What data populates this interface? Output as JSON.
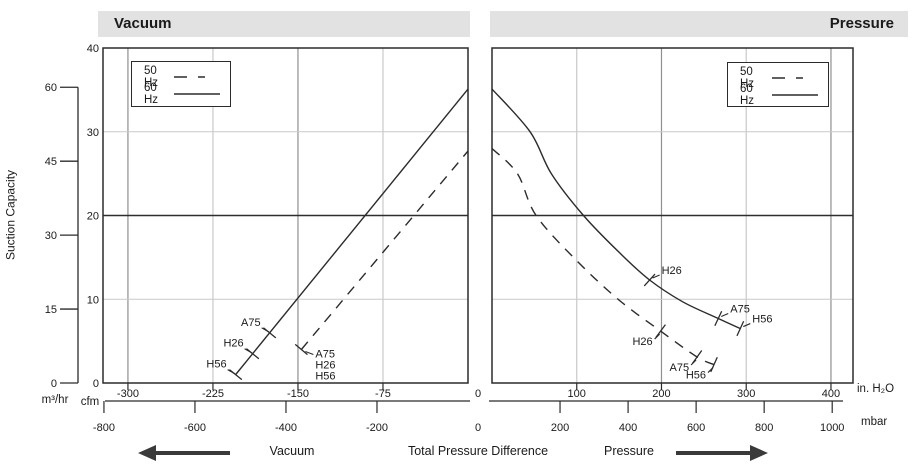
{
  "headers": {
    "vacuum": "Vacuum",
    "pressure": "Pressure"
  },
  "y_title": "Suction Capacity",
  "legend": {
    "items": [
      {
        "label": "50 Hz",
        "style": "dashed"
      },
      {
        "label": "60 Hz",
        "style": "solid"
      }
    ]
  },
  "units": {
    "m3hr": "m³/hr",
    "cfm": "cfm",
    "inh2o": "in. H₂O",
    "mbar": "mbar"
  },
  "captions": {
    "vacuum": "Vacuum",
    "center": "Total Pressure Difference",
    "pressure": "Pressure"
  },
  "shared_zero": {
    "inh2o": "0",
    "mbar": "0"
  },
  "colors": {
    "line": "#2b2b2b",
    "grid_light": "#c9c9c9",
    "grid_dark": "#8f8f8f",
    "grid_black": "#2e2e2e",
    "header_bg": "#e2e2e2",
    "arrow": "#3a3a3a",
    "text": "#1a1a1a"
  },
  "y_axis": {
    "cfm_ticks": [
      {
        "c": 0,
        "label": "0"
      },
      {
        "c": 10,
        "label": "10"
      },
      {
        "c": 20,
        "label": "20"
      },
      {
        "c": 30,
        "label": "30"
      },
      {
        "c": 40,
        "label": "40"
      }
    ],
    "m3hr_ticks": [
      {
        "m": 0,
        "label": "0"
      },
      {
        "m": 15,
        "label": "15"
      },
      {
        "m": 30,
        "label": "30"
      },
      {
        "m": 45,
        "label": "45"
      },
      {
        "m": 60,
        "label": "60"
      }
    ]
  },
  "h_grid": [
    {
      "c": 10,
      "tone": "light"
    },
    {
      "c": 20,
      "tone": "black"
    },
    {
      "c": 30,
      "tone": "light"
    }
  ],
  "chart_data": [
    {
      "id": "vacuum",
      "type": "line",
      "title": "Vacuum",
      "x_unit": "in. H₂O",
      "x2_unit": "mbar",
      "x_range": [
        -322,
        0
      ],
      "x_ticks": [
        {
          "v": -300,
          "label": "-300",
          "grid": "dark"
        },
        {
          "v": -225,
          "label": "-225",
          "grid": "light"
        },
        {
          "v": -150,
          "label": "-150",
          "grid": "dark"
        },
        {
          "v": -75,
          "label": "-75",
          "grid": "light"
        }
      ],
      "x2_ticks": [
        {
          "v": -800,
          "label": "-800"
        },
        {
          "v": -600,
          "label": "-600"
        },
        {
          "v": -400,
          "label": "-400"
        },
        {
          "v": -200,
          "label": "-200"
        }
      ],
      "series": [
        {
          "name": "50 Hz",
          "style": "dashed",
          "marker_layout": "right-stack",
          "points": [
            [
              -147,
              4.0
            ],
            [
              0,
              27.7
            ]
          ],
          "markers": [
            {
              "label": "A75",
              "v": -147
            },
            {
              "label": "H26",
              "v": -147
            },
            {
              "label": "H56",
              "v": -147
            }
          ]
        },
        {
          "name": "60 Hz",
          "style": "solid",
          "marker_layout": "upleft",
          "points": [
            [
              -205,
              1.0
            ],
            [
              0,
              35.1
            ]
          ],
          "markers": [
            {
              "label": "H56",
              "v": -205
            },
            {
              "label": "H26",
              "v": -190
            },
            {
              "label": "A75",
              "v": -175
            }
          ]
        }
      ]
    },
    {
      "id": "pressure",
      "type": "line",
      "title": "Pressure",
      "x_unit": "in. H₂O",
      "x2_unit": "mbar",
      "x_range": [
        0,
        426
      ],
      "x_ticks": [
        {
          "v": 100,
          "label": "100",
          "grid": "light"
        },
        {
          "v": 200,
          "label": "200",
          "grid": "dark"
        },
        {
          "v": 300,
          "label": "300",
          "grid": "light"
        },
        {
          "v": 400,
          "label": "400",
          "grid": "dark"
        }
      ],
      "x2_ticks": [
        {
          "v": 200,
          "label": "200"
        },
        {
          "v": 400,
          "label": "400"
        },
        {
          "v": 600,
          "label": "600"
        },
        {
          "v": 800,
          "label": "800"
        },
        {
          "v": 1000,
          "label": "1000"
        }
      ],
      "series": [
        {
          "name": "50 Hz",
          "style": "dashed",
          "marker_layout": "downleft",
          "points": [
            [
              0,
              28.0
            ],
            [
              30,
              25.0
            ],
            [
              52,
              20.0
            ],
            [
              100,
              14.6
            ],
            [
              150,
              9.9
            ],
            [
              199,
              6.2
            ],
            [
              242,
              3.1
            ],
            [
              262,
              2.2
            ]
          ],
          "markers": [
            {
              "label": "H26",
              "v": 199
            },
            {
              "label": "A75",
              "v": 242
            },
            {
              "label": "H56",
              "v": 262
            }
          ]
        },
        {
          "name": "60 Hz",
          "style": "solid",
          "marker_layout": "upright",
          "points": [
            [
              0,
              35.1
            ],
            [
              45,
              30.0
            ],
            [
              70,
              25.0
            ],
            [
              108,
              20.0
            ],
            [
              150,
              15.6
            ],
            [
              186,
              12.3
            ],
            [
              225,
              9.7
            ],
            [
              267,
              7.7
            ],
            [
              293,
              6.5
            ]
          ],
          "markers": [
            {
              "label": "H26",
              "v": 186
            },
            {
              "label": "A75",
              "v": 267
            },
            {
              "label": "H56",
              "v": 293
            }
          ]
        }
      ]
    }
  ]
}
